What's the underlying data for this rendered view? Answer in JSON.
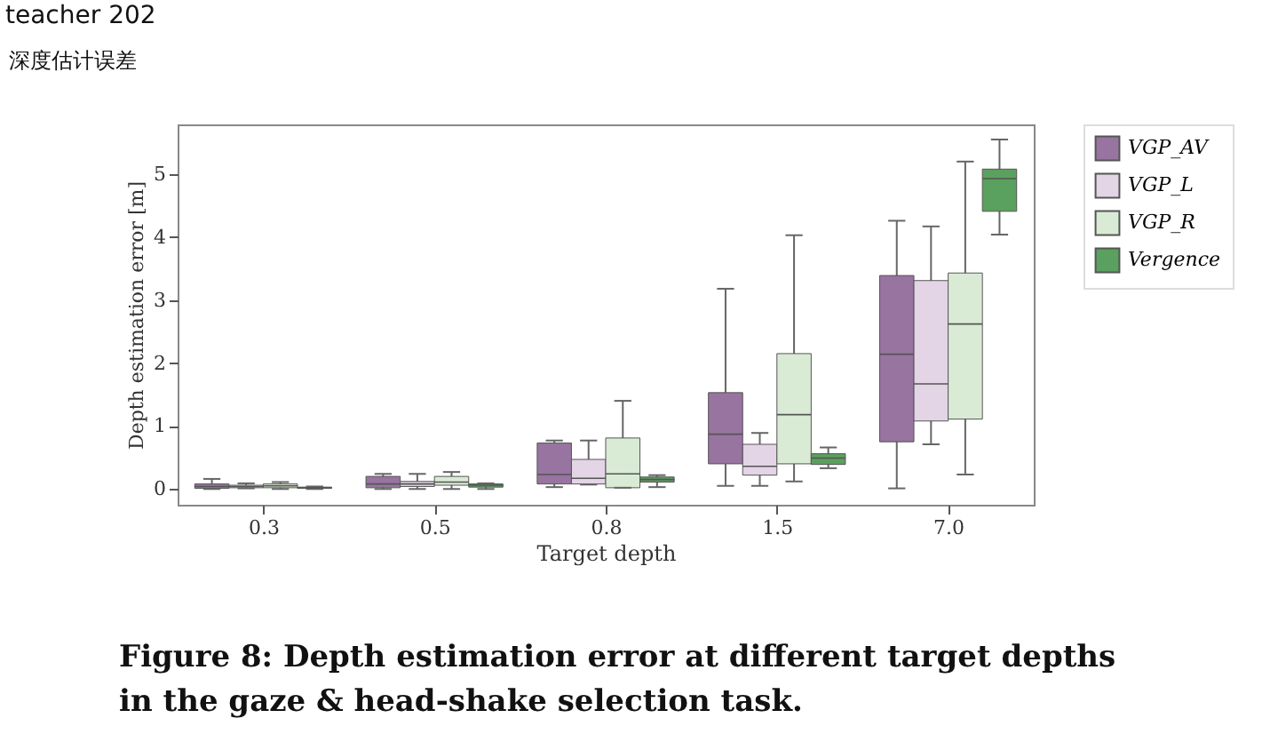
{
  "chart_data": {
    "type": "box",
    "xlabel": "Target depth",
    "ylabel": "Depth estimation error [m]",
    "categories": [
      "0.3",
      "0.5",
      "0.8",
      "1.5",
      "7.0"
    ],
    "ylim": [
      -0.25,
      5.79
    ],
    "yticks": [
      0,
      1,
      2,
      3,
      4,
      5
    ],
    "grid": false,
    "legend": "right",
    "series": [
      {
        "name": "VGP_AV",
        "color": "#9874a1",
        "boxes": [
          {
            "low": 0.0,
            "q1": 0.01,
            "median": 0.04,
            "q3": 0.08,
            "high": 0.16
          },
          {
            "low": 0.0,
            "q1": 0.02,
            "median": 0.08,
            "q3": 0.2,
            "high": 0.24
          },
          {
            "low": 0.03,
            "q1": 0.08,
            "median": 0.23,
            "q3": 0.73,
            "high": 0.77
          },
          {
            "low": 0.05,
            "q1": 0.4,
            "median": 0.87,
            "q3": 1.53,
            "high": 3.18
          },
          {
            "low": 0.01,
            "q1": 0.75,
            "median": 2.14,
            "q3": 3.39,
            "high": 4.26
          }
        ]
      },
      {
        "name": "VGP_L",
        "color": "#e3d4e6",
        "boxes": [
          {
            "low": 0.01,
            "q1": 0.02,
            "median": 0.04,
            "q3": 0.06,
            "high": 0.09
          },
          {
            "low": 0.0,
            "q1": 0.04,
            "median": 0.08,
            "q3": 0.12,
            "high": 0.24
          },
          {
            "low": 0.07,
            "q1": 0.08,
            "median": 0.17,
            "q3": 0.47,
            "high": 0.77
          },
          {
            "low": 0.05,
            "q1": 0.22,
            "median": 0.36,
            "q3": 0.71,
            "high": 0.89
          },
          {
            "low": 0.71,
            "q1": 1.08,
            "median": 1.67,
            "q3": 3.31,
            "high": 4.17
          }
        ]
      },
      {
        "name": "VGP_R",
        "color": "#d9ebd5",
        "boxes": [
          {
            "low": 0.0,
            "q1": 0.02,
            "median": 0.05,
            "q3": 0.08,
            "high": 0.11
          },
          {
            "low": 0.0,
            "q1": 0.06,
            "median": 0.11,
            "q3": 0.2,
            "high": 0.27
          },
          {
            "low": 0.02,
            "q1": 0.02,
            "median": 0.24,
            "q3": 0.81,
            "high": 1.4
          },
          {
            "low": 0.12,
            "q1": 0.4,
            "median": 1.18,
            "q3": 2.15,
            "high": 4.03
          },
          {
            "low": 0.23,
            "q1": 1.11,
            "median": 2.62,
            "q3": 3.43,
            "high": 5.2
          }
        ]
      },
      {
        "name": "Vergence",
        "color": "#5aa05e",
        "boxes": [
          {
            "low": 0.0,
            "q1": 0.01,
            "median": 0.02,
            "q3": 0.03,
            "high": 0.04
          },
          {
            "low": 0.0,
            "q1": 0.03,
            "median": 0.06,
            "q3": 0.08,
            "high": 0.09
          },
          {
            "low": 0.03,
            "q1": 0.11,
            "median": 0.15,
            "q3": 0.19,
            "high": 0.22
          },
          {
            "low": 0.33,
            "q1": 0.39,
            "median": 0.49,
            "q3": 0.56,
            "high": 0.66
          },
          {
            "low": 4.04,
            "q1": 4.41,
            "median": 4.93,
            "q3": 5.08,
            "high": 5.55
          }
        ]
      }
    ],
    "annotations": [
      "teacher 202",
      "深度估计误差",
      "Figure 8: Depth estimation error at different target depths",
      "in the gaze & head-shake selection task."
    ]
  }
}
